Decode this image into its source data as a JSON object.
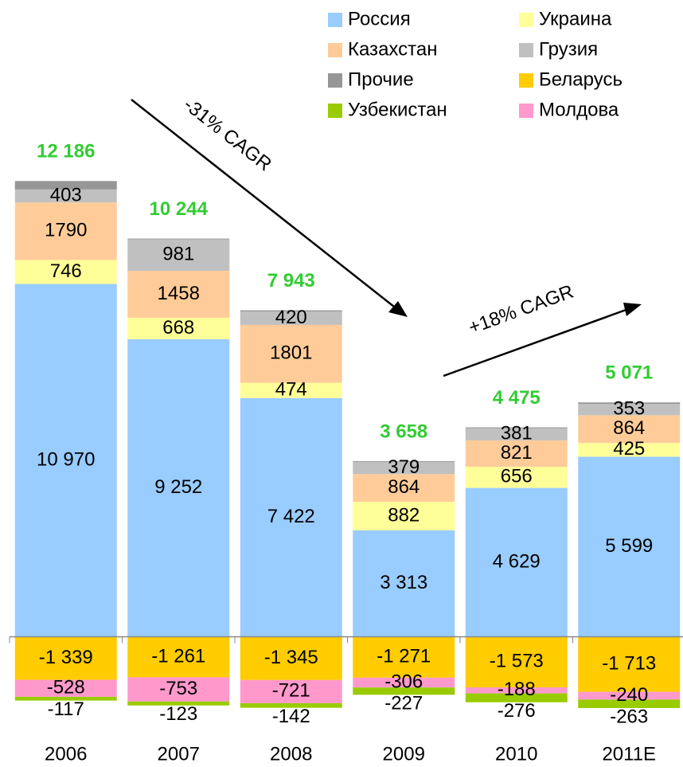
{
  "chart_data": {
    "type": "stacked_bar",
    "categories": [
      "2006",
      "2007",
      "2008",
      "2009",
      "2010",
      "2011E"
    ],
    "series": [
      {
        "name": "Россия",
        "color": "#99ccff",
        "values": [
          10970,
          9252,
          7422,
          3313,
          4629,
          5599
        ],
        "value_labels": [
          "10 970",
          "9 252",
          "7 422",
          "3 313",
          "4 629",
          "5 599"
        ]
      },
      {
        "name": "Украина",
        "color": "#ffff99",
        "values": [
          746,
          668,
          474,
          882,
          656,
          425
        ]
      },
      {
        "name": "Казахстан",
        "color": "#ffcc99",
        "values": [
          1790,
          1458,
          1801,
          864,
          821,
          864
        ]
      },
      {
        "name": "Грузия",
        "color": "#c0c0c0",
        "values": [
          403,
          981,
          420,
          379,
          381,
          353
        ]
      },
      {
        "name": "Прочие",
        "color": "#969696",
        "values": [
          261,
          22,
          34,
          24,
          25,
          46
        ]
      },
      {
        "name": "Беларусь",
        "color": "#ffcc00",
        "values": [
          -1339,
          -1261,
          -1345,
          -1271,
          -1573,
          -1713
        ],
        "value_labels": [
          "-1 339",
          "-1 261",
          "-1 345",
          "-1 271",
          "-1 573",
          "-1 713"
        ]
      },
      {
        "name": "Молдова",
        "color": "#ff99cc",
        "values": [
          -528,
          -753,
          -721,
          -306,
          -188,
          -240
        ]
      },
      {
        "name": "Узбекистан",
        "color": "#99cc00",
        "values": [
          -117,
          -123,
          -142,
          -227,
          -276,
          -263
        ]
      }
    ],
    "totals": [
      12186,
      10244,
      7943,
      3658,
      4475,
      5071
    ],
    "total_labels": [
      "12 186",
      "10 244",
      "7 943",
      "3 658",
      "4 475",
      "5 071"
    ],
    "total_color": "#33cc33",
    "annotations": [
      "-31% CAGR",
      "+18% CAGR"
    ],
    "ylim": [
      -4000,
      19800
    ]
  }
}
